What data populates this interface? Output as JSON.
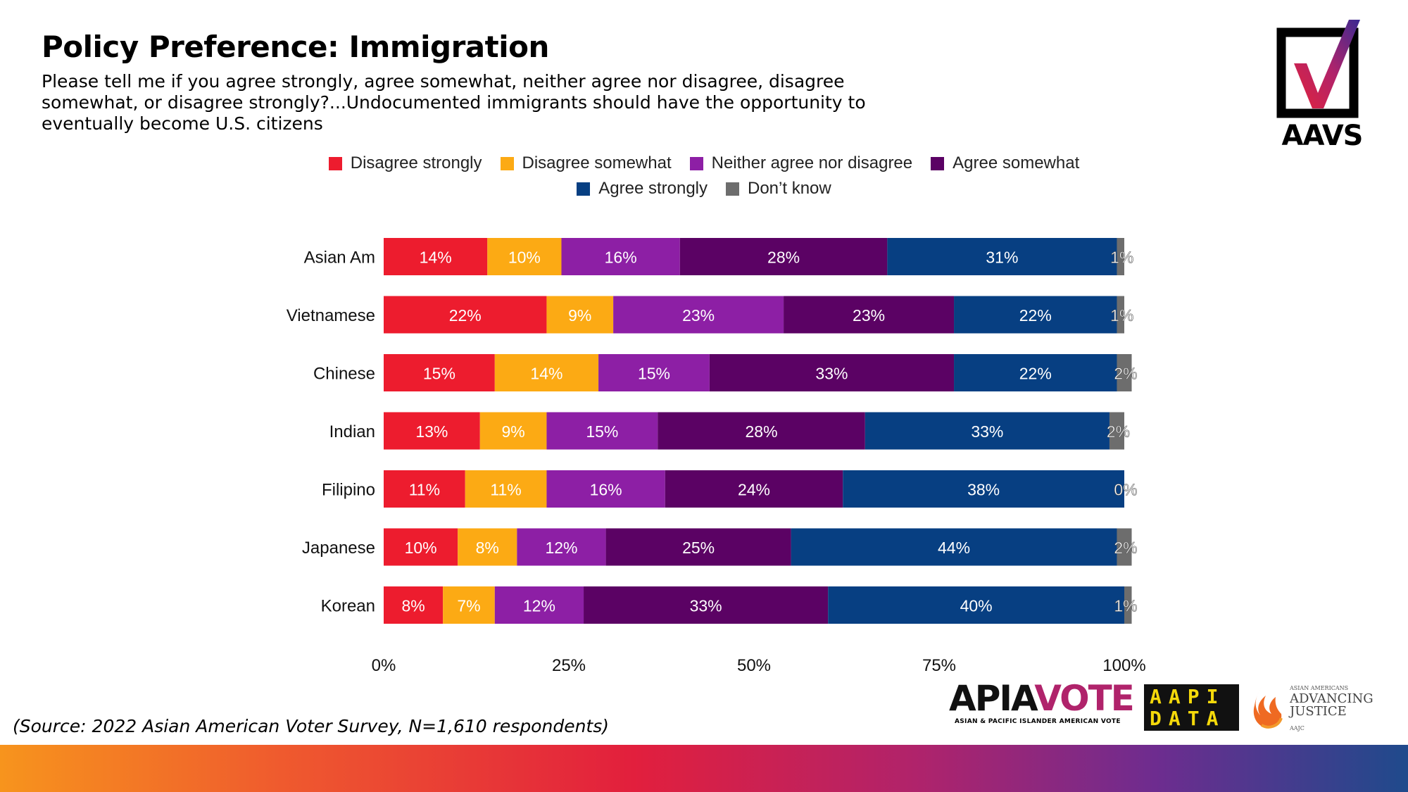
{
  "header": {
    "title": "Policy Preference: Immigration",
    "subtitle": "Please tell me if you agree strongly, agree somewhat, neither agree nor disagree, disagree somewhat, or disagree strongly?...Undocumented immigrants should have the opportunity to eventually become U.S. citizens"
  },
  "logos": {
    "aavs": "AAVS",
    "apiavote_main": "APIAVOTE",
    "apiavote_sub": "ASIAN & PACIFIC ISLANDER AMERICAN VOTE",
    "aapi_data_line1": "AAPI",
    "aapi_data_line2": "DATA",
    "aajc_small": "ASIAN AMERICANS",
    "aajc_line1": "ADVANCING",
    "aajc_line2": "JUSTICE",
    "aajc_tiny": "AAJC"
  },
  "source": "(Source: 2022 Asian American Voter Survey, N=1,610 respondents)",
  "chart_data": {
    "type": "bar",
    "orientation": "horizontal",
    "stacked": true,
    "categories": [
      "Asian Am",
      "Vietnamese",
      "Chinese",
      "Indian",
      "Filipino",
      "Japanese",
      "Korean"
    ],
    "series": [
      {
        "name": "Disagree strongly",
        "color": "#ed1c2e",
        "values": [
          14,
          22,
          15,
          13,
          11,
          10,
          8
        ]
      },
      {
        "name": "Disagree somewhat",
        "color": "#fcaa14",
        "values": [
          10,
          9,
          14,
          9,
          11,
          8,
          7
        ]
      },
      {
        "name": "Neither agree nor disagree",
        "color": "#8d1fa5",
        "values": [
          16,
          23,
          15,
          15,
          16,
          12,
          12
        ]
      },
      {
        "name": "Agree somewhat",
        "color": "#5b0264",
        "values": [
          28,
          23,
          33,
          28,
          24,
          25,
          33
        ]
      },
      {
        "name": "Agree strongly",
        "color": "#073f82",
        "values": [
          31,
          22,
          22,
          33,
          38,
          44,
          40
        ]
      },
      {
        "name": "Don’t know",
        "color": "#6d6d6d",
        "values": [
          1,
          1,
          2,
          2,
          0,
          2,
          1
        ]
      }
    ],
    "x_ticks": [
      "0%",
      "25%",
      "50%",
      "75%",
      "100%"
    ],
    "xlim": [
      0,
      100
    ],
    "legend": "top",
    "grid": false,
    "data_label_suffix": "%"
  }
}
